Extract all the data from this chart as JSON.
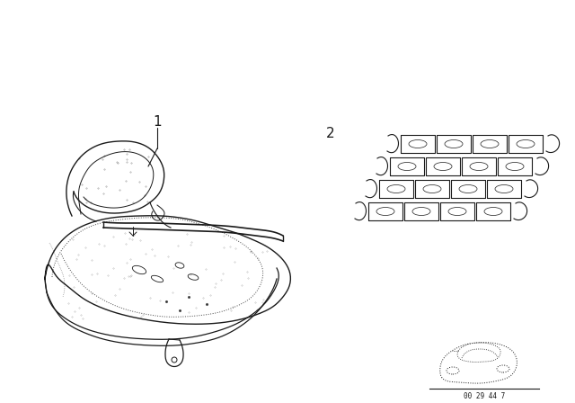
{
  "bg_color": "#ffffff",
  "line_color": "#1a1a1a",
  "fig_width": 6.4,
  "fig_height": 4.48,
  "dpi": 100,
  "label1": "1",
  "label2": "2",
  "watermark": "00 29 44 7"
}
